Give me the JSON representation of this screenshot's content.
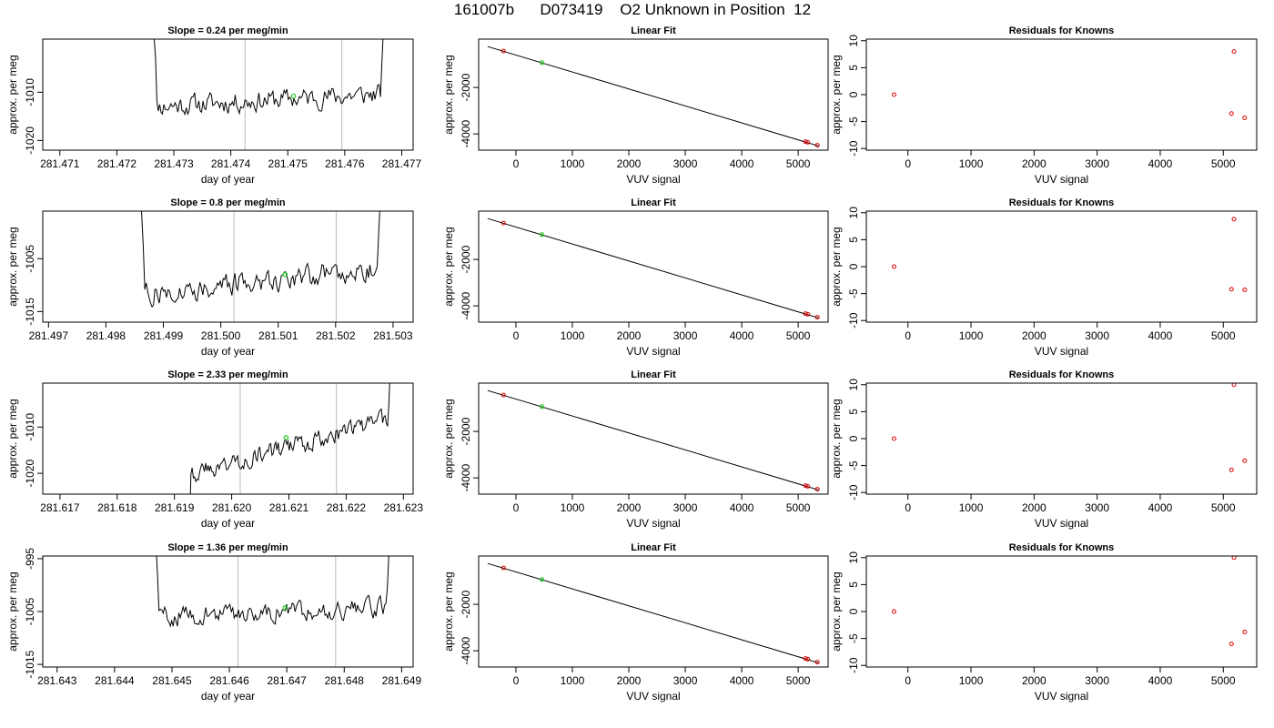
{
  "page": {
    "title": "161007b      D073419    O2 Unknown in Position  12"
  },
  "colors": {
    "trace": "#000000",
    "marker_green": "#22cc22",
    "point_red": "#dd0000",
    "vline": "#bbbbbb"
  },
  "chart_data": [
    {
      "type": "line",
      "id": "ts-row1",
      "title": "Slope =  0.24  per meg/min",
      "xlabel": "day of year",
      "ylabel": "approx. per meg",
      "xlim": [
        281.4707,
        281.4772
      ],
      "ylim": [
        -1022,
        -999
      ],
      "xticks": [
        281.471,
        281.472,
        281.473,
        281.474,
        281.475,
        281.476,
        281.477
      ],
      "xtick_labels": [
        "281.471",
        "281.472",
        "281.473",
        "281.474",
        "281.475",
        "281.476",
        "281.477"
      ],
      "yticks": [
        -1010,
        -1020
      ],
      "ytick_labels": [
        "-1010",
        "-1020"
      ],
      "vlines": [
        281.47425,
        281.47595
      ],
      "green_marker": {
        "x": 281.4751,
        "y": -1010.8
      },
      "x_start": 281.47258,
      "x_end": 281.47675,
      "y_start": -1008.5,
      "y_end": -1010.5,
      "baseline_start": -1013.0,
      "baseline_end": -1010.3,
      "noise": 2.4,
      "seed": 11
    },
    {
      "type": "scatter",
      "id": "fit-row1",
      "title": "Linear Fit",
      "xlabel": "VUV signal",
      "ylabel": "approx. per meg",
      "xlim": [
        -660,
        5530
      ],
      "ylim": [
        -4700,
        80
      ],
      "xticks": [
        0,
        1000,
        2000,
        3000,
        4000,
        5000
      ],
      "xtick_labels": [
        "0",
        "1000",
        "2000",
        "3000",
        "4000",
        "5000"
      ],
      "yticks": [
        -2000,
        -4000
      ],
      "ytick_labels": [
        "-2000",
        "-4000"
      ],
      "line": {
        "x": [
          -500,
          5360
        ],
        "y": [
          -240,
          -4520
        ]
      },
      "points_red": [
        {
          "x": -220,
          "y": -432
        },
        {
          "x": 5130,
          "y": -4335
        },
        {
          "x": 5170,
          "y": -4362
        },
        {
          "x": 5340,
          "y": -4487
        }
      ],
      "points_green": [
        {
          "x": 460,
          "y": -930
        }
      ]
    },
    {
      "type": "scatter",
      "id": "res-row1",
      "title": "Residuals for Knowns",
      "xlabel": "VUV signal",
      "ylabel": "approx. per meg",
      "xlim": [
        -660,
        5530
      ],
      "ylim": [
        -10.3,
        10.3
      ],
      "xticks": [
        0,
        1000,
        2000,
        3000,
        4000,
        5000
      ],
      "xtick_labels": [
        "0",
        "1000",
        "2000",
        "3000",
        "4000",
        "5000"
      ],
      "yticks": [
        10,
        5,
        0,
        -5,
        -10
      ],
      "ytick_labels": [
        "10",
        "5",
        "0",
        "-5",
        "-10"
      ],
      "points_red": [
        {
          "x": -220,
          "y": 0
        },
        {
          "x": 5170,
          "y": 8
        },
        {
          "x": 5130,
          "y": -3.5
        },
        {
          "x": 5340,
          "y": -4.3
        }
      ]
    },
    {
      "type": "line",
      "id": "ts-row2",
      "title": "Slope =  0.8  per meg/min",
      "xlabel": "day of year",
      "ylabel": "approx. per meg",
      "xlim": [
        281.4969,
        281.50335
      ],
      "ylim": [
        -1017,
        -996
      ],
      "xticks": [
        281.497,
        281.498,
        281.499,
        281.5,
        281.501,
        281.502,
        281.503
      ],
      "xtick_labels": [
        "281.497",
        "281.498",
        "281.499",
        "281.500",
        "281.501",
        "281.502",
        "281.503"
      ],
      "yticks": [
        -1005,
        -1015
      ],
      "ytick_labels": [
        "-1005",
        "-1015"
      ],
      "vlines": [
        281.50023,
        281.50201
      ],
      "green_marker": {
        "x": 281.50112,
        "y": -1008.0
      },
      "x_start": 281.49855,
      "x_end": 281.50285,
      "y_start": -1008.0,
      "y_end": -1006.5,
      "baseline_start": -1012.0,
      "baseline_end": -1006.5,
      "noise": 2.4,
      "seed": 27
    },
    {
      "type": "scatter",
      "id": "fit-row2",
      "title": "Linear Fit",
      "xlabel": "VUV signal",
      "ylabel": "approx. per meg",
      "xlim": [
        -660,
        5530
      ],
      "ylim": [
        -4700,
        80
      ],
      "xticks": [
        0,
        1000,
        2000,
        3000,
        4000,
        5000
      ],
      "xtick_labels": [
        "0",
        "1000",
        "2000",
        "3000",
        "4000",
        "5000"
      ],
      "yticks": [
        -2000,
        -4000
      ],
      "ytick_labels": [
        "-2000",
        "-4000"
      ],
      "line": {
        "x": [
          -500,
          5360
        ],
        "y": [
          -240,
          -4520
        ]
      },
      "points_red": [
        {
          "x": -220,
          "y": -432
        },
        {
          "x": 5130,
          "y": -4335
        },
        {
          "x": 5170,
          "y": -4362
        },
        {
          "x": 5340,
          "y": -4487
        }
      ],
      "points_green": [
        {
          "x": 460,
          "y": -930
        }
      ]
    },
    {
      "type": "scatter",
      "id": "res-row2",
      "title": "Residuals for Knowns",
      "xlabel": "VUV signal",
      "ylabel": "approx. per meg",
      "xlim": [
        -660,
        5530
      ],
      "ylim": [
        -10.3,
        10.3
      ],
      "xticks": [
        0,
        1000,
        2000,
        3000,
        4000,
        5000
      ],
      "xtick_labels": [
        "0",
        "1000",
        "2000",
        "3000",
        "4000",
        "5000"
      ],
      "yticks": [
        10,
        5,
        0,
        -5,
        -10
      ],
      "ytick_labels": [
        "10",
        "5",
        "0",
        "-5",
        "-10"
      ],
      "points_red": [
        {
          "x": -220,
          "y": 0
        },
        {
          "x": 5170,
          "y": 8.8
        },
        {
          "x": 5130,
          "y": -4.2
        },
        {
          "x": 5340,
          "y": -4.3
        }
      ]
    },
    {
      "type": "line",
      "id": "ts-row3",
      "title": "Slope =  2.33  per meg/min",
      "xlabel": "day of year",
      "ylabel": "approx. per meg",
      "xlim": [
        281.6167,
        281.62317
      ],
      "ylim": [
        -1024.5,
        -1000.5
      ],
      "xticks": [
        281.617,
        281.618,
        281.619,
        281.62,
        281.621,
        281.622,
        281.623
      ],
      "xtick_labels": [
        "281.617",
        "281.618",
        "281.619",
        "281.620",
        "281.621",
        "281.622",
        "281.623"
      ],
      "yticks": [
        -1010,
        -1020
      ],
      "ytick_labels": [
        "-1010",
        "-1020"
      ],
      "vlines": [
        281.62015,
        281.62183
      ],
      "green_marker": {
        "x": 281.62095,
        "y": -1012.3
      },
      "x_start": 281.61918,
      "x_end": 281.62283,
      "y_start": -1023.5,
      "y_end": -1011.5,
      "baseline_start": -1020.5,
      "baseline_end": -1008.0,
      "noise": 2.2,
      "seed": 43
    },
    {
      "type": "scatter",
      "id": "fit-row3",
      "title": "Linear Fit",
      "xlabel": "VUV signal",
      "ylabel": "approx. per meg",
      "xlim": [
        -660,
        5530
      ],
      "ylim": [
        -4700,
        80
      ],
      "xticks": [
        0,
        1000,
        2000,
        3000,
        4000,
        5000
      ],
      "xtick_labels": [
        "0",
        "1000",
        "2000",
        "3000",
        "4000",
        "5000"
      ],
      "yticks": [
        -2000,
        -4000
      ],
      "ytick_labels": [
        "-2000",
        "-4000"
      ],
      "line": {
        "x": [
          -500,
          5360
        ],
        "y": [
          -240,
          -4520
        ]
      },
      "points_red": [
        {
          "x": -220,
          "y": -432
        },
        {
          "x": 5130,
          "y": -4335
        },
        {
          "x": 5170,
          "y": -4362
        },
        {
          "x": 5340,
          "y": -4487
        }
      ],
      "points_green": [
        {
          "x": 460,
          "y": -930
        }
      ]
    },
    {
      "type": "scatter",
      "id": "res-row3",
      "title": "Residuals for Knowns",
      "xlabel": "VUV signal",
      "ylabel": "approx. per meg",
      "xlim": [
        -660,
        5530
      ],
      "ylim": [
        -10.3,
        10.3
      ],
      "xticks": [
        0,
        1000,
        2000,
        3000,
        4000,
        5000
      ],
      "xtick_labels": [
        "0",
        "1000",
        "2000",
        "3000",
        "4000",
        "5000"
      ],
      "yticks": [
        10,
        5,
        0,
        -5,
        -10
      ],
      "ytick_labels": [
        "10",
        "5",
        "0",
        "-5",
        "-10"
      ],
      "points_red": [
        {
          "x": -220,
          "y": 0
        },
        {
          "x": 5170,
          "y": 10
        },
        {
          "x": 5130,
          "y": -5.8
        },
        {
          "x": 5340,
          "y": -4.1
        }
      ]
    },
    {
      "type": "line",
      "id": "ts-row4",
      "title": "Slope =  1.36  per meg/min",
      "xlabel": "day of year",
      "ylabel": "approx. per meg",
      "xlim": [
        281.64275,
        281.6492
      ],
      "ylim": [
        -1015.5,
        -994.5
      ],
      "xticks": [
        281.643,
        281.644,
        281.645,
        281.646,
        281.647,
        281.648,
        281.649
      ],
      "xtick_labels": [
        "281.643",
        "281.644",
        "281.645",
        "281.646",
        "281.647",
        "281.648",
        "281.649"
      ],
      "yticks": [
        -995,
        -1005,
        -1015
      ],
      "ytick_labels": [
        "-995",
        "-1005",
        "-1015"
      ],
      "vlines": [
        281.64615,
        281.64785
      ],
      "green_marker": {
        "x": 281.64697,
        "y": -1004.3
      },
      "x_start": 281.64465,
      "x_end": 281.64885,
      "y_start": -1004.0,
      "y_end": -1006.0,
      "baseline_start": -1006.0,
      "baseline_end": -1004.2,
      "noise": 2.0,
      "seed": 59
    },
    {
      "type": "scatter",
      "id": "fit-row4",
      "title": "Linear Fit",
      "xlabel": "VUV signal",
      "ylabel": "approx. per meg",
      "xlim": [
        -660,
        5530
      ],
      "ylim": [
        -4700,
        80
      ],
      "xticks": [
        0,
        1000,
        2000,
        3000,
        4000,
        5000
      ],
      "xtick_labels": [
        "0",
        "1000",
        "2000",
        "3000",
        "4000",
        "5000"
      ],
      "yticks": [
        -2000,
        -4000
      ],
      "ytick_labels": [
        "-2000",
        "-4000"
      ],
      "line": {
        "x": [
          -500,
          5360
        ],
        "y": [
          -240,
          -4520
        ]
      },
      "points_red": [
        {
          "x": -220,
          "y": -432
        },
        {
          "x": 5130,
          "y": -4335
        },
        {
          "x": 5170,
          "y": -4362
        },
        {
          "x": 5340,
          "y": -4487
        }
      ],
      "points_green": [
        {
          "x": 460,
          "y": -930
        }
      ]
    },
    {
      "type": "scatter",
      "id": "res-row4",
      "title": "Residuals for Knowns",
      "xlabel": "VUV signal",
      "ylabel": "approx. per meg",
      "xlim": [
        -660,
        5530
      ],
      "ylim": [
        -10.3,
        10.3
      ],
      "xticks": [
        0,
        1000,
        2000,
        3000,
        4000,
        5000
      ],
      "xtick_labels": [
        "0",
        "1000",
        "2000",
        "3000",
        "4000",
        "5000"
      ],
      "yticks": [
        10,
        5,
        0,
        -5,
        -10
      ],
      "ytick_labels": [
        "10",
        "5",
        "0",
        "-5",
        "-10"
      ],
      "points_red": [
        {
          "x": -220,
          "y": 0
        },
        {
          "x": 5170,
          "y": 10
        },
        {
          "x": 5130,
          "y": -6
        },
        {
          "x": 5340,
          "y": -3.8
        }
      ]
    }
  ]
}
